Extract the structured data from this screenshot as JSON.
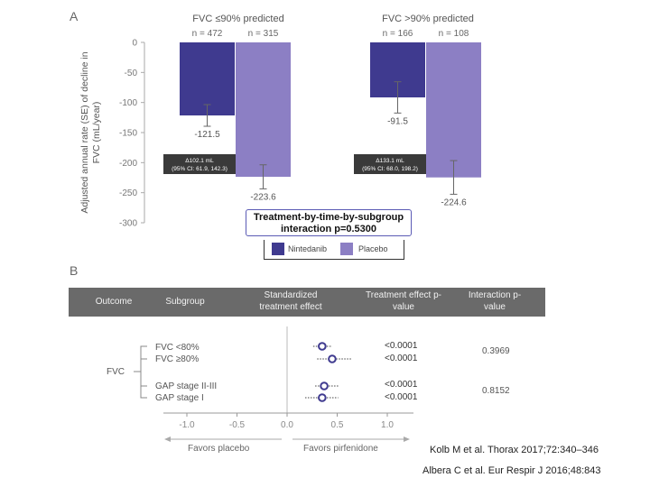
{
  "panel_a": {
    "letter": "A",
    "group_titles": [
      "FVC ≤90% predicted",
      "FVC >90% predicted"
    ],
    "n_labels": [
      "n = 472",
      "n = 315",
      "n = 166",
      "n = 108"
    ],
    "diff_boxes": [
      {
        "line1": "Δ102.1 mL",
        "line2": "(95% CI: 61.9, 142.3)"
      },
      {
        "line1": "Δ133.1 mL",
        "line2": "(95% CI: 68.0, 198.2)"
      }
    ],
    "interaction_text": "Treatment-by-time-by-subgroup interaction p=0.5300",
    "legend": [
      "Nintedanib",
      "Placebo"
    ],
    "colors": {
      "nintedanib": "#3f3a8f",
      "placebo": "#8c7fc4"
    }
  },
  "chart_data": [
    {
      "type": "bar",
      "ylabel": "Adjusted annual rate (SE) of decline in FVC (mL/year)",
      "ylim": [
        -300,
        0
      ],
      "yticks": [
        0,
        -50,
        -100,
        -150,
        -200,
        -250,
        -300
      ],
      "categories": [
        "FVC ≤90% predicted",
        "FVC >90% predicted"
      ],
      "series": [
        {
          "name": "Nintedanib",
          "values": [
            -121.5,
            -91.5
          ],
          "se": [
            18,
            26
          ]
        },
        {
          "name": "Placebo",
          "values": [
            -223.6,
            -224.6
          ],
          "se": [
            20,
            28
          ]
        }
      ],
      "value_labels": [
        [
          "-121.5",
          "-223.6"
        ],
        [
          "-91.5",
          "-224.6"
        ]
      ],
      "grid": false,
      "legend_position": "bottom"
    },
    {
      "type": "scatter",
      "title": "Standardized treatment effect",
      "xlim": [
        -1.0,
        1.0
      ],
      "xticks": [
        "-1.0",
        "-0.5",
        "0.0",
        "0.5",
        "1.0"
      ],
      "rows": [
        {
          "label": "FVC <80%",
          "effect": 0.35,
          "ci": [
            0.26,
            0.45
          ],
          "p": "<0.0001"
        },
        {
          "label": "FVC ≥80%",
          "effect": 0.45,
          "ci": [
            0.3,
            0.65
          ],
          "p": "<0.0001"
        },
        {
          "label": "GAP stage II-III",
          "effect": 0.37,
          "ci": [
            0.28,
            0.52
          ],
          "p": "<0.0001"
        },
        {
          "label": "GAP stage I",
          "effect": 0.35,
          "ci": [
            0.18,
            0.51
          ],
          "p": "<0.0001"
        }
      ]
    }
  ],
  "panel_b": {
    "letter": "B",
    "headers": {
      "outcome": "Outcome",
      "subgroup": "Subgroup",
      "effect": "Standardized treatment effect",
      "pvalue": "Treatment effect p-value",
      "interaction": "Interaction p-value"
    },
    "outcome_label": "FVC",
    "interaction_values": [
      "0.3969",
      "0.8152"
    ],
    "favors_left": "Favors placebo",
    "favors_right": "Favors pirfenidone"
  },
  "citations": [
    "Kolb M et al. Thorax 2017;72:340–346",
    "Albera C et al. Eur Respir J 2016;48:843"
  ]
}
